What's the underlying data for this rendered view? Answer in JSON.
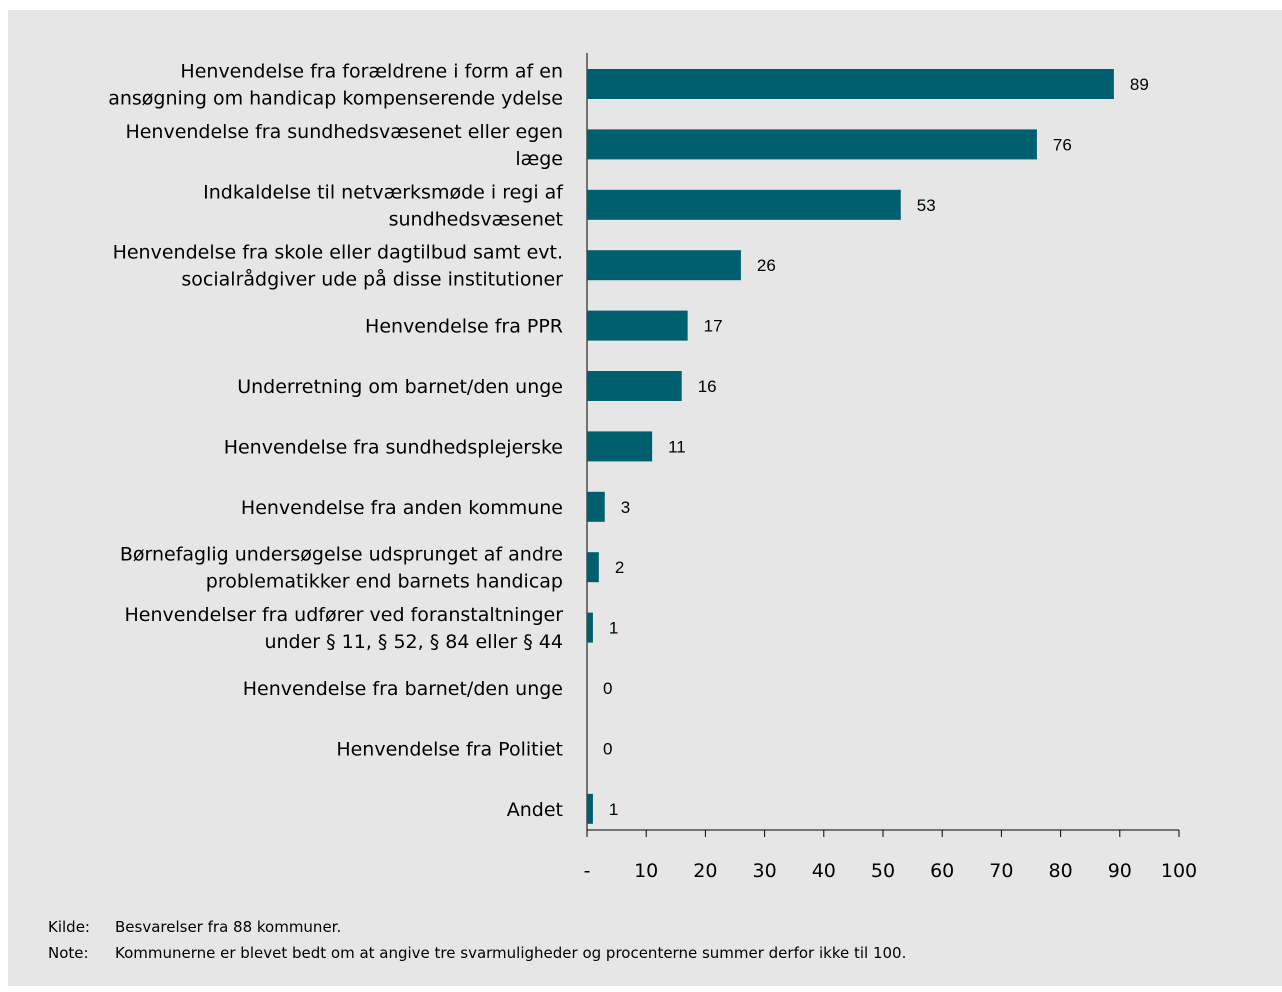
{
  "chart_data": {
    "type": "bar",
    "orientation": "horizontal",
    "categories": [
      [
        "Henvendelse fra forældrene i form af en",
        "ansøgning om handicap kompenserende ydelse"
      ],
      [
        "Henvendelse fra sundhedsvæsenet eller egen",
        "læge"
      ],
      [
        "Indkaldelse til netværksmøde i regi af",
        "sundhedsvæsenet"
      ],
      [
        "Henvendelse fra skole eller dagtilbud samt evt.",
        "socialrådgiver ude på disse institutioner"
      ],
      [
        "Henvendelse fra PPR"
      ],
      [
        "Underretning om barnet/den unge"
      ],
      [
        "Henvendelse fra sundhedsplejerske"
      ],
      [
        "Henvendelse fra anden kommune"
      ],
      [
        "Børnefaglig undersøgelse udsprunget af andre",
        "problematikker end barnets handicap"
      ],
      [
        "Henvendelser fra udfører ved foranstaltninger",
        "under § 11, § 52, § 84 eller § 44"
      ],
      [
        "Henvendelse fra barnet/den unge"
      ],
      [
        "Henvendelse fra Politiet"
      ],
      [
        "Andet"
      ]
    ],
    "values": [
      89,
      76,
      53,
      26,
      17,
      16,
      11,
      3,
      2,
      1,
      0,
      0,
      1
    ],
    "color": "#005f6e",
    "xlim": [
      0,
      100
    ],
    "xticks": [
      {
        "value": 0,
        "label": "-"
      },
      10,
      20,
      30,
      40,
      50,
      60,
      70,
      80,
      90,
      100
    ],
    "grid": false,
    "notes": [
      {
        "label": "Kilde:",
        "text": "Besvarelser fra 88 kommuner."
      },
      {
        "label": "Note:",
        "text": "Kommunerne er blevet bedt om at angive tre svarmuligheder og procenterne summer derfor ikke til 100."
      }
    ]
  }
}
